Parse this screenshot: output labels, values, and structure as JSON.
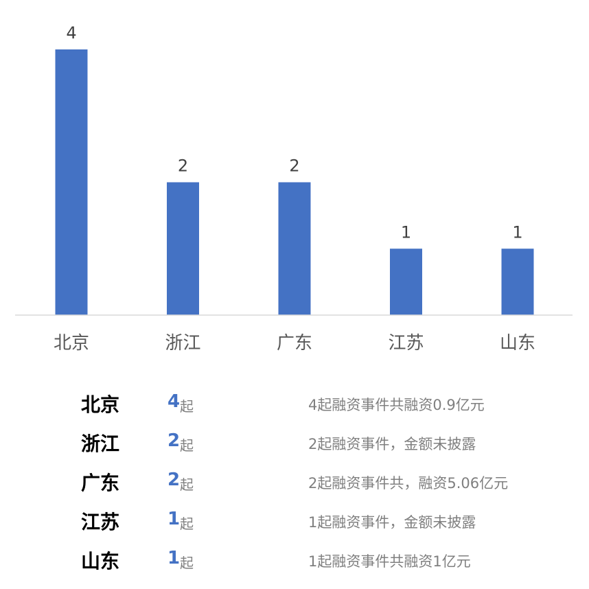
{
  "chart_data": {
    "type": "bar",
    "categories": [
      "北京",
      "浙江",
      "广东",
      "江苏",
      "山东"
    ],
    "values": [
      4,
      2,
      2,
      1,
      1
    ],
    "title": "",
    "xlabel": "",
    "ylabel": "",
    "ylim": [
      0,
      4
    ],
    "grid": false,
    "data_labels": true,
    "bar_color": "#4472C4"
  },
  "table": {
    "rows": [
      {
        "province": "北京",
        "count": "4",
        "unit": "起",
        "desc": "4起融资事件共融资0.9亿元"
      },
      {
        "province": "浙江",
        "count": "2",
        "unit": "起",
        "desc": "2起融资事件，金额未披露"
      },
      {
        "province": "广东",
        "count": "2",
        "unit": "起",
        "desc": "2起融资事件共，融资5.06亿元"
      },
      {
        "province": "江苏",
        "count": "1",
        "unit": "起",
        "desc": "1起融资事件，金额未披露"
      },
      {
        "province": "山东",
        "count": "1",
        "unit": "起",
        "desc": "1起融资事件共融资1亿元"
      }
    ]
  }
}
